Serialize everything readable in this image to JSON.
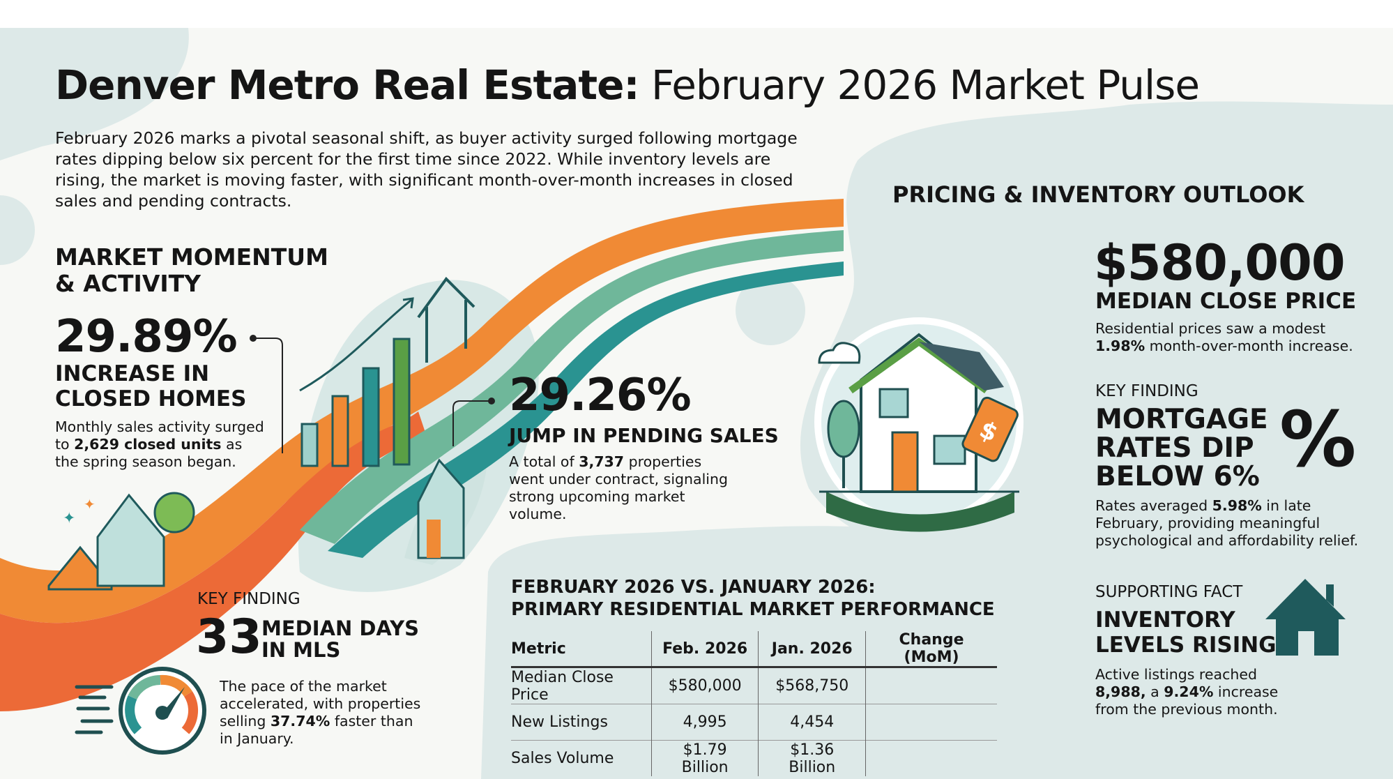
{
  "header": {
    "title_bold": "Denver Metro Real Estate:",
    "title_light": "February 2026 Market Pulse",
    "intro": "February 2026 marks a pivotal seasonal shift, as buyer activity surged following mortgage rates dipping below six percent for the first time since 2022. While inventory levels are rising, the market is moving faster, with significant month-over-month increases in closed sales and pending contracts."
  },
  "momentum": {
    "heading": "MARKET MOMENTUM & ACTIVITY",
    "closed": {
      "value": "29.89%",
      "label": "INCREASE IN CLOSED HOMES",
      "body_pre": "Monthly sales activity surged to ",
      "body_bold": "2,629 closed units",
      "body_post": " as the spring season began."
    },
    "pending": {
      "value": "29.26%",
      "label": "JUMP IN PENDING SALES",
      "body_pre": "A total of ",
      "body_bold": "3,737",
      "body_post": " properties went under contract, signaling strong upcoming market volume."
    },
    "days": {
      "kicker": "KEY FINDING",
      "value": "33",
      "label_1": "MEDIAN DAYS",
      "label_2": "IN MLS",
      "body_pre": "The pace of the market accelerated, with properties selling ",
      "body_bold": "37.74%",
      "body_post": " faster than in January."
    }
  },
  "table": {
    "title_1": "FEBRUARY 2026 VS. JANUARY 2026:",
    "title_2": "PRIMARY RESIDENTIAL MARKET PERFORMANCE",
    "headers": [
      "Metric",
      "Feb. 2026",
      "Jan. 2026",
      "Change (MoM)"
    ],
    "rows": [
      [
        "Median Close Price",
        "$580,000",
        "$568,750",
        ""
      ],
      [
        "New Listings",
        "4,995",
        "4,454",
        ""
      ],
      [
        "Sales Volume",
        "$1.79 Billion",
        "$1.36 Billion",
        ""
      ]
    ]
  },
  "outlook": {
    "heading": "PRICING & INVENTORY OUTLOOK",
    "price": "$580,000",
    "price_label": "MEDIAN CLOSE PRICE",
    "price_body_pre": "Residential prices saw a modest ",
    "price_body_bold": "1.98%",
    "price_body_post": " month-over-month increase.",
    "mortgage_kicker": "KEY FINDING",
    "mortgage_1": "MORTGAGE",
    "mortgage_2": "RATES DIP",
    "mortgage_3": "BELOW 6%",
    "percent_symbol": "%",
    "mortgage_body_pre": "Rates averaged ",
    "mortgage_body_bold": "5.98%",
    "mortgage_body_post": " in late February, providing meaningful psychological and affordability relief.",
    "inventory_kicker": "SUPPORTING FACT",
    "inventory_1": "INVENTORY",
    "inventory_2": "LEVELS RISING",
    "inventory_body_1": "Active listings reached ",
    "inventory_body_bold_1": "8,988,",
    "inventory_body_2": " a ",
    "inventory_body_bold_2": "9.24%",
    "inventory_body_3": " increase from the previous month."
  },
  "colors": {
    "orange": "#f08a35",
    "red_orange": "#ec6a37",
    "teal": "#2a9391",
    "sage": "#6fb79a",
    "dark_teal": "#1f5a5c",
    "green": "#5a9f45",
    "blob": "#dde9e8"
  },
  "icons": [
    "rising-bar-chart-icon",
    "house-icon",
    "speedometer-icon",
    "house-price-tag-icon",
    "house-silhouette-icon",
    "cloud-icon",
    "tree-icon"
  ]
}
